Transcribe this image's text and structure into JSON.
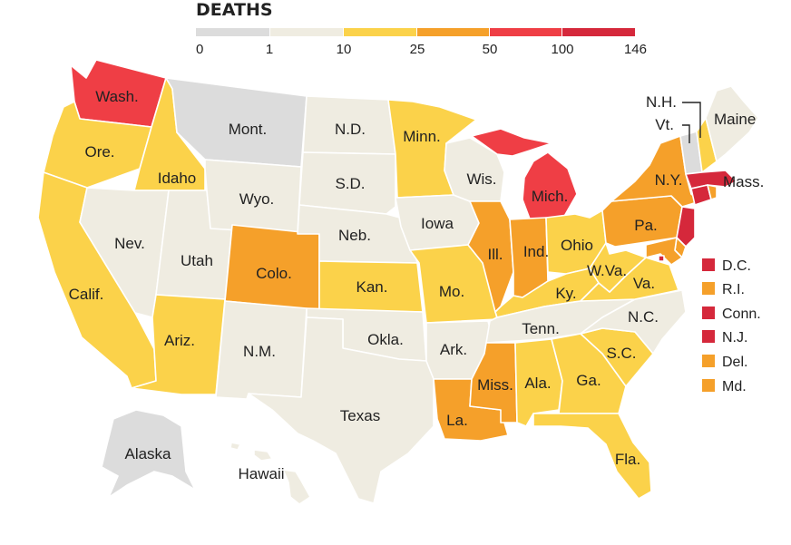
{
  "legend": {
    "title": "DEATHS",
    "ticks": [
      "0",
      "1",
      "10",
      "25",
      "50",
      "100",
      "146"
    ],
    "bins": [
      {
        "key": "b0",
        "color": "#dcdcdc"
      },
      {
        "key": "b1",
        "color": "#efece1"
      },
      {
        "key": "b2",
        "color": "#fbd24a"
      },
      {
        "key": "b3",
        "color": "#f5a02a"
      },
      {
        "key": "b4",
        "color": "#ef3e45"
      },
      {
        "key": "b5",
        "color": "#d5283b"
      }
    ]
  },
  "states": {
    "wa": {
      "label": "Wash.",
      "bin": "b4"
    },
    "or": {
      "label": "Ore.",
      "bin": "b2"
    },
    "ca": {
      "label": "Calif.",
      "bin": "b2"
    },
    "id": {
      "label": "Idaho",
      "bin": "b2"
    },
    "nv": {
      "label": "Nev.",
      "bin": "b1"
    },
    "ut": {
      "label": "Utah",
      "bin": "b1"
    },
    "az": {
      "label": "Ariz.",
      "bin": "b2"
    },
    "mt": {
      "label": "Mont.",
      "bin": "b0"
    },
    "wy": {
      "label": "Wyo.",
      "bin": "b1"
    },
    "co": {
      "label": "Colo.",
      "bin": "b3"
    },
    "nm": {
      "label": "N.M.",
      "bin": "b1"
    },
    "nd": {
      "label": "N.D.",
      "bin": "b1"
    },
    "sd": {
      "label": "S.D.",
      "bin": "b1"
    },
    "ne": {
      "label": "Neb.",
      "bin": "b1"
    },
    "ks": {
      "label": "Kan.",
      "bin": "b2"
    },
    "ok": {
      "label": "Okla.",
      "bin": "b1"
    },
    "tx": {
      "label": "Texas",
      "bin": "b1"
    },
    "mn": {
      "label": "Minn.",
      "bin": "b2"
    },
    "ia": {
      "label": "Iowa",
      "bin": "b1"
    },
    "mo": {
      "label": "Mo.",
      "bin": "b2"
    },
    "ar": {
      "label": "Ark.",
      "bin": "b1"
    },
    "la": {
      "label": "La.",
      "bin": "b3"
    },
    "wi": {
      "label": "Wis.",
      "bin": "b1"
    },
    "il": {
      "label": "Ill.",
      "bin": "b3"
    },
    "mi": {
      "label": "Mich.",
      "bin": "b4"
    },
    "in": {
      "label": "Ind.",
      "bin": "b3"
    },
    "oh": {
      "label": "Ohio",
      "bin": "b2"
    },
    "ky": {
      "label": "Ky.",
      "bin": "b2"
    },
    "tn": {
      "label": "Tenn.",
      "bin": "b1"
    },
    "ms": {
      "label": "Miss.",
      "bin": "b3"
    },
    "al": {
      "label": "Ala.",
      "bin": "b2"
    },
    "ga": {
      "label": "Ga.",
      "bin": "b2"
    },
    "fl": {
      "label": "Fla.",
      "bin": "b2"
    },
    "sc": {
      "label": "S.C.",
      "bin": "b2"
    },
    "nc": {
      "label": "N.C.",
      "bin": "b1"
    },
    "va": {
      "label": "Va.",
      "bin": "b2"
    },
    "wv": {
      "label": "W.Va.",
      "bin": "b2"
    },
    "pa": {
      "label": "Pa.",
      "bin": "b3"
    },
    "ny": {
      "label": "N.Y.",
      "bin": "b3"
    },
    "vt": {
      "label": "Vt.",
      "bin": "b0"
    },
    "nh": {
      "label": "N.H.",
      "bin": "b2"
    },
    "me": {
      "label": "Maine",
      "bin": "b1"
    },
    "ma": {
      "label": "Mass.",
      "bin": "b5"
    },
    "ak": {
      "label": "Alaska",
      "bin": "b0"
    },
    "hi": {
      "label": "Hawaii",
      "bin": "b1"
    }
  },
  "small_states": [
    {
      "key": "dc",
      "label": "D.C.",
      "bin": "b5"
    },
    {
      "key": "ri",
      "label": "R.I.",
      "bin": "b3"
    },
    {
      "key": "ct",
      "label": "Conn.",
      "bin": "b5"
    },
    {
      "key": "nj",
      "label": "N.J.",
      "bin": "b5"
    },
    {
      "key": "de",
      "label": "Del.",
      "bin": "b3"
    },
    {
      "key": "md",
      "label": "Md.",
      "bin": "b3"
    }
  ]
}
